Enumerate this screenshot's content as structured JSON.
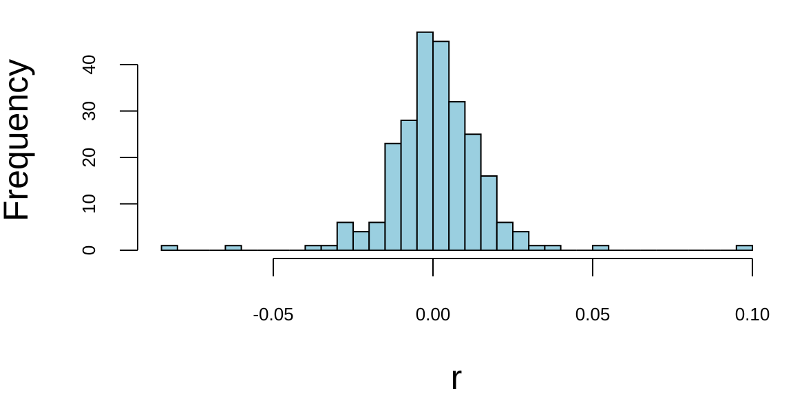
{
  "chart_data": {
    "type": "bar",
    "title": "",
    "xlabel": "r",
    "ylabel": "Frequency",
    "bin_width": 0.005,
    "bins": [
      {
        "x0": -0.085,
        "x1": -0.08,
        "count": 1
      },
      {
        "x0": -0.08,
        "x1": -0.075,
        "count": 0
      },
      {
        "x0": -0.075,
        "x1": -0.07,
        "count": 0
      },
      {
        "x0": -0.07,
        "x1": -0.065,
        "count": 0
      },
      {
        "x0": -0.065,
        "x1": -0.06,
        "count": 1
      },
      {
        "x0": -0.06,
        "x1": -0.055,
        "count": 0
      },
      {
        "x0": -0.055,
        "x1": -0.05,
        "count": 0
      },
      {
        "x0": -0.05,
        "x1": -0.045,
        "count": 0
      },
      {
        "x0": -0.045,
        "x1": -0.04,
        "count": 0
      },
      {
        "x0": -0.04,
        "x1": -0.035,
        "count": 1
      },
      {
        "x0": -0.035,
        "x1": -0.03,
        "count": 1
      },
      {
        "x0": -0.03,
        "x1": -0.025,
        "count": 6
      },
      {
        "x0": -0.025,
        "x1": -0.02,
        "count": 4
      },
      {
        "x0": -0.02,
        "x1": -0.015,
        "count": 6
      },
      {
        "x0": -0.015,
        "x1": -0.01,
        "count": 23
      },
      {
        "x0": -0.01,
        "x1": -0.005,
        "count": 28
      },
      {
        "x0": -0.005,
        "x1": 0.0,
        "count": 47
      },
      {
        "x0": 0.0,
        "x1": 0.005,
        "count": 45
      },
      {
        "x0": 0.005,
        "x1": 0.01,
        "count": 32
      },
      {
        "x0": 0.01,
        "x1": 0.015,
        "count": 25
      },
      {
        "x0": 0.015,
        "x1": 0.02,
        "count": 16
      },
      {
        "x0": 0.02,
        "x1": 0.025,
        "count": 6
      },
      {
        "x0": 0.025,
        "x1": 0.03,
        "count": 4
      },
      {
        "x0": 0.03,
        "x1": 0.035,
        "count": 1
      },
      {
        "x0": 0.035,
        "x1": 0.04,
        "count": 1
      },
      {
        "x0": 0.04,
        "x1": 0.045,
        "count": 0
      },
      {
        "x0": 0.045,
        "x1": 0.05,
        "count": 0
      },
      {
        "x0": 0.05,
        "x1": 0.055,
        "count": 1
      },
      {
        "x0": 0.055,
        "x1": 0.06,
        "count": 0
      },
      {
        "x0": 0.06,
        "x1": 0.065,
        "count": 0
      },
      {
        "x0": 0.065,
        "x1": 0.07,
        "count": 0
      },
      {
        "x0": 0.07,
        "x1": 0.075,
        "count": 0
      },
      {
        "x0": 0.075,
        "x1": 0.08,
        "count": 0
      },
      {
        "x0": 0.08,
        "x1": 0.085,
        "count": 0
      },
      {
        "x0": 0.085,
        "x1": 0.09,
        "count": 0
      },
      {
        "x0": 0.09,
        "x1": 0.095,
        "count": 0
      },
      {
        "x0": 0.095,
        "x1": 0.1,
        "count": 1
      }
    ],
    "x_ticks": [
      {
        "value": -0.05,
        "label": "-0.05"
      },
      {
        "value": 0.0,
        "label": "0.00"
      },
      {
        "value": 0.05,
        "label": "0.05"
      },
      {
        "value": 0.1,
        "label": "0.10"
      }
    ],
    "y_ticks": [
      {
        "value": 0,
        "label": "0"
      },
      {
        "value": 10,
        "label": "10"
      },
      {
        "value": 20,
        "label": "20"
      },
      {
        "value": 30,
        "label": "30"
      },
      {
        "value": 40,
        "label": "40"
      }
    ],
    "xlim": [
      -0.085,
      0.1
    ],
    "ylim": [
      0,
      47
    ],
    "grid": false,
    "legend": "none",
    "bar_color": "#9ACFE0",
    "bar_edge_color": "#000000"
  }
}
